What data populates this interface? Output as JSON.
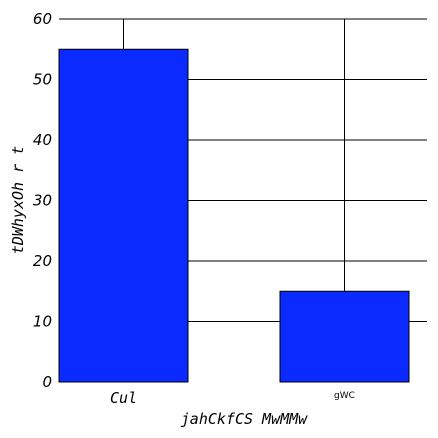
{
  "chart_data": {
    "type": "bar",
    "categories": [
      "Cul",
      "gWC"
    ],
    "values": [
      55,
      15
    ],
    "xlabel": "jahCkfCS MwMMw",
    "ylabel": "tDWhyxOh r  t",
    "ylim": [
      0,
      60
    ],
    "yticks": [
      0,
      10,
      20,
      30,
      40,
      50,
      60
    ],
    "grid": true,
    "bar_color": "#0a2aff",
    "grid_color": "#000000"
  }
}
